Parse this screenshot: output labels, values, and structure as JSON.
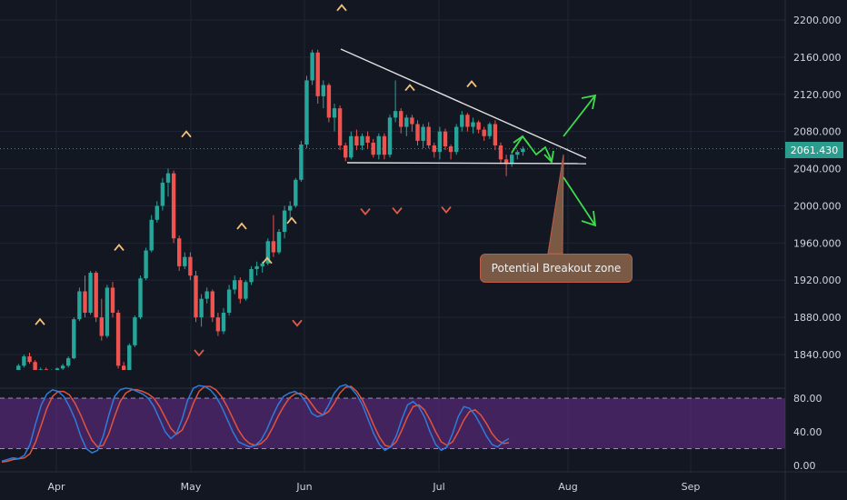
{
  "chart_data": [
    {
      "type": "candlestick",
      "y_ticks": [
        "2200.000",
        "2160.000",
        "2120.000",
        "2080.000",
        "2040.000",
        "2000.000",
        "1960.000",
        "1920.000",
        "1880.000",
        "1840.000"
      ],
      "ylim": [
        1815,
        2215
      ],
      "x_ticks": [
        "Apr",
        "May",
        "Jun",
        "Jul",
        "Aug",
        "Sep"
      ],
      "last_price": "2061.430",
      "annotations": {
        "callout": "Potential Breakout zone"
      },
      "colors": {
        "up": "#26a69a",
        "down": "#ef5350",
        "pivot_high": "#f5c27a",
        "pivot_low": "#e05a4a",
        "arrows": "#3ddc4a",
        "lines": "#e0e0e0"
      },
      "candles": [
        [
          1820,
          1822,
          1818,
          1821
        ],
        [
          1821,
          1823,
          1816,
          1819
        ],
        [
          1819,
          1822,
          1815,
          1818
        ],
        [
          1818,
          1830,
          1817,
          1828
        ],
        [
          1828,
          1840,
          1826,
          1838
        ],
        [
          1838,
          1842,
          1830,
          1832
        ],
        [
          1832,
          1834,
          1820,
          1822
        ],
        [
          1822,
          1826,
          1815,
          1824
        ],
        [
          1824,
          1826,
          1818,
          1820
        ],
        [
          1820,
          1824,
          1817,
          1822
        ],
        [
          1822,
          1826,
          1819,
          1825
        ],
        [
          1825,
          1830,
          1822,
          1828
        ],
        [
          1828,
          1838,
          1826,
          1836
        ],
        [
          1836,
          1880,
          1835,
          1878
        ],
        [
          1878,
          1912,
          1876,
          1908
        ],
        [
          1908,
          1925,
          1880,
          1885
        ],
        [
          1885,
          1930,
          1883,
          1928
        ],
        [
          1928,
          1930,
          1875,
          1880
        ],
        [
          1880,
          1900,
          1855,
          1860
        ],
        [
          1860,
          1915,
          1858,
          1912
        ],
        [
          1912,
          1918,
          1880,
          1885
        ],
        [
          1885,
          1888,
          1825,
          1828
        ],
        [
          1828,
          1832,
          1815,
          1820
        ],
        [
          1820,
          1852,
          1818,
          1850
        ],
        [
          1850,
          1882,
          1848,
          1880
        ],
        [
          1880,
          1925,
          1878,
          1922
        ],
        [
          1922,
          1955,
          1920,
          1952
        ],
        [
          1952,
          1990,
          1950,
          1985
        ],
        [
          1985,
          2005,
          1982,
          2000
        ],
        [
          2000,
          2030,
          1995,
          2025
        ],
        [
          2025,
          2040,
          2010,
          2035
        ],
        [
          2035,
          2038,
          1960,
          1965
        ],
        [
          1965,
          1968,
          1930,
          1935
        ],
        [
          1935,
          1950,
          1932,
          1945
        ],
        [
          1945,
          1950,
          1920,
          1925
        ],
        [
          1925,
          1930,
          1875,
          1880
        ],
        [
          1880,
          1905,
          1870,
          1900
        ],
        [
          1900,
          1912,
          1895,
          1908
        ],
        [
          1908,
          1910,
          1875,
          1880
        ],
        [
          1880,
          1885,
          1860,
          1865
        ],
        [
          1865,
          1890,
          1862,
          1885
        ],
        [
          1885,
          1915,
          1882,
          1910
        ],
        [
          1910,
          1925,
          1905,
          1920
        ],
        [
          1920,
          1923,
          1895,
          1900
        ],
        [
          1900,
          1920,
          1898,
          1918
        ],
        [
          1918,
          1935,
          1915,
          1932
        ],
        [
          1932,
          1940,
          1925,
          1935
        ],
        [
          1935,
          1940,
          1928,
          1938
        ],
        [
          1938,
          1965,
          1936,
          1962
        ],
        [
          1962,
          1990,
          1945,
          1950
        ],
        [
          1950,
          1975,
          1948,
          1972
        ],
        [
          1972,
          2000,
          1965,
          1995
        ],
        [
          1995,
          2005,
          1985,
          2000
        ],
        [
          2000,
          2030,
          1998,
          2028
        ],
        [
          2028,
          2070,
          2026,
          2066
        ],
        [
          2066,
          2140,
          2062,
          2135
        ],
        [
          2135,
          2168,
          2130,
          2165
        ],
        [
          2165,
          2168,
          2110,
          2118
        ],
        [
          2118,
          2135,
          2105,
          2130
        ],
        [
          2130,
          2132,
          2090,
          2095
        ],
        [
          2095,
          2110,
          2080,
          2105
        ],
        [
          2105,
          2108,
          2060,
          2065
        ],
        [
          2065,
          2068,
          2048,
          2052
        ],
        [
          2052,
          2080,
          2050,
          2075
        ],
        [
          2075,
          2082,
          2060,
          2065
        ],
        [
          2065,
          2078,
          2060,
          2075
        ],
        [
          2075,
          2080,
          2062,
          2068
        ],
        [
          2068,
          2072,
          2052,
          2055
        ],
        [
          2055,
          2078,
          2050,
          2075
        ],
        [
          2075,
          2078,
          2050,
          2055
        ],
        [
          2055,
          2098,
          2052,
          2095
        ],
        [
          2095,
          2135,
          2090,
          2102
        ],
        [
          2102,
          2105,
          2078,
          2085
        ],
        [
          2085,
          2098,
          2075,
          2095
        ],
        [
          2095,
          2098,
          2080,
          2088
        ],
        [
          2088,
          2092,
          2065,
          2070
        ],
        [
          2070,
          2088,
          2062,
          2085
        ],
        [
          2085,
          2090,
          2062,
          2065
        ],
        [
          2065,
          2068,
          2052,
          2058
        ],
        [
          2058,
          2085,
          2050,
          2080
        ],
        [
          2080,
          2083,
          2060,
          2064
        ],
        [
          2064,
          2066,
          2050,
          2058
        ],
        [
          2058,
          2088,
          2055,
          2085
        ],
        [
          2085,
          2102,
          2080,
          2098
        ],
        [
          2098,
          2100,
          2080,
          2085
        ],
        [
          2085,
          2095,
          2078,
          2090
        ],
        [
          2090,
          2092,
          2078,
          2082
        ],
        [
          2082,
          2085,
          2070,
          2075
        ],
        [
          2075,
          2090,
          2072,
          2088
        ],
        [
          2088,
          2092,
          2060,
          2065
        ],
        [
          2065,
          2068,
          2045,
          2050
        ],
        [
          2050,
          2055,
          2032,
          2045
        ],
        [
          2045,
          2058,
          2042,
          2055
        ],
        [
          2055,
          2060,
          2050,
          2058
        ],
        [
          2058,
          2064,
          2054,
          2061.43
        ]
      ],
      "pivot_highs": [
        1876,
        1956,
        2078,
        1942,
        1979,
        1985,
        2214,
        2128,
        2132
      ],
      "pivot_lows": [
        1842,
        1874,
        1994,
        1995,
        1996
      ]
    },
    {
      "type": "line",
      "y_ticks": [
        "80.00",
        "40.00",
        "0.00"
      ],
      "ylim": [
        0,
        100
      ],
      "levels": [
        80,
        20
      ],
      "colors": {
        "k": "#2f7bd9",
        "d": "#e0533d",
        "band": "#6a2e8f"
      },
      "series": [
        {
          "values": [
            5,
            7,
            9,
            8,
            12,
            25,
            50,
            72,
            85,
            90,
            88,
            82,
            70,
            55,
            35,
            20,
            15,
            18,
            35,
            60,
            82,
            90,
            92,
            91,
            88,
            85,
            80,
            70,
            55,
            40,
            32,
            38,
            55,
            78,
            92,
            95,
            94,
            90,
            82,
            70,
            55,
            40,
            28,
            25,
            22,
            24,
            30,
            42,
            58,
            72,
            82,
            86,
            88,
            84,
            75,
            62,
            58,
            60,
            72,
            86,
            94,
            96,
            92,
            84,
            72,
            55,
            38,
            25,
            18,
            22,
            35,
            55,
            72,
            76,
            70,
            58,
            40,
            25,
            18,
            22,
            38,
            58,
            70,
            68,
            60,
            48,
            35,
            25,
            22,
            28,
            32
          ]
        },
        {
          "values": [
            4,
            5,
            7,
            8,
            9,
            14,
            28,
            48,
            68,
            82,
            88,
            88,
            84,
            74,
            60,
            44,
            30,
            22,
            24,
            38,
            58,
            76,
            86,
            90,
            90,
            88,
            85,
            80,
            70,
            57,
            44,
            37,
            42,
            56,
            74,
            88,
            94,
            94,
            90,
            82,
            70,
            56,
            42,
            32,
            26,
            24,
            26,
            32,
            44,
            58,
            70,
            80,
            85,
            86,
            82,
            73,
            64,
            60,
            64,
            74,
            86,
            93,
            94,
            88,
            78,
            64,
            48,
            34,
            24,
            22,
            28,
            42,
            58,
            70,
            72,
            66,
            54,
            40,
            28,
            24,
            28,
            40,
            54,
            64,
            66,
            60,
            50,
            38,
            30,
            26,
            27
          ]
        }
      ]
    }
  ]
}
